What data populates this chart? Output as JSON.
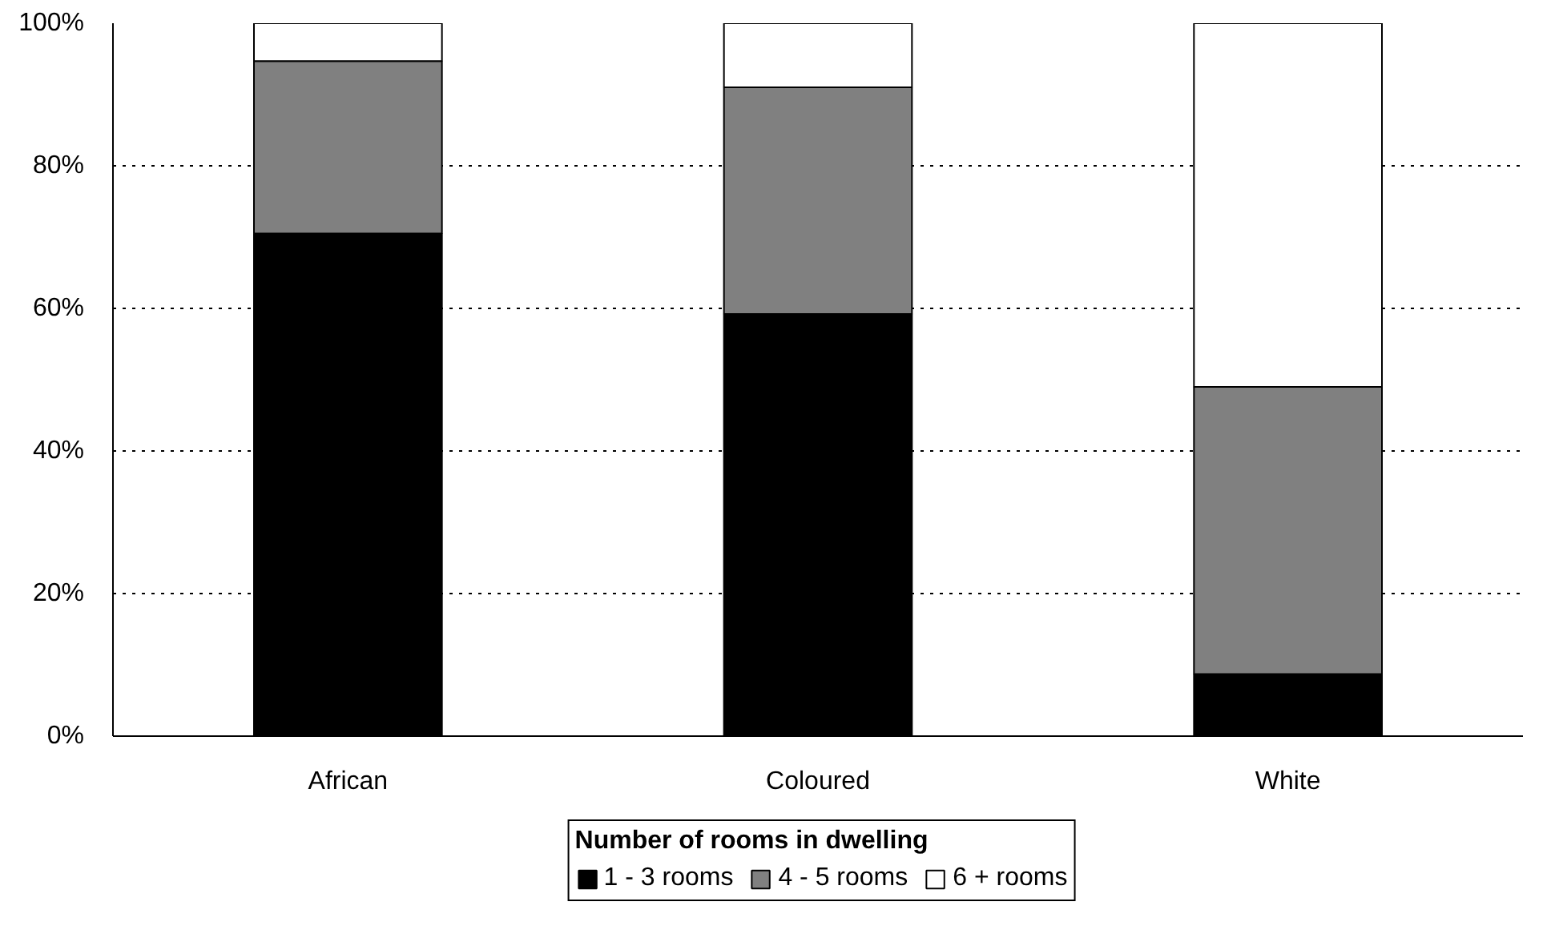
{
  "chart_data": {
    "type": "bar",
    "stacked": true,
    "categories": [
      "African",
      "Coloured",
      "White"
    ],
    "series": [
      {
        "name": "1 - 3 rooms",
        "color": "#000000",
        "values": [
          70.5,
          59.2,
          8.7
        ]
      },
      {
        "name": "4 - 5 rooms",
        "color": "#808080",
        "values": [
          24.2,
          31.8,
          40.3
        ]
      },
      {
        "name": "6 + rooms",
        "color": "#ffffff",
        "values": [
          5.3,
          9.0,
          51.0
        ]
      }
    ],
    "legend_title": "Number of rooms in dwelling",
    "legend": "bottom",
    "grid": "y",
    "ylim": [
      0,
      100
    ],
    "yticks": [
      {
        "value": 0,
        "label": "0%"
      },
      {
        "value": 20,
        "label": "20%"
      },
      {
        "value": 40,
        "label": "40%"
      },
      {
        "value": 60,
        "label": "60%"
      },
      {
        "value": 80,
        "label": "80%"
      },
      {
        "value": 100,
        "label": "100%"
      }
    ]
  }
}
